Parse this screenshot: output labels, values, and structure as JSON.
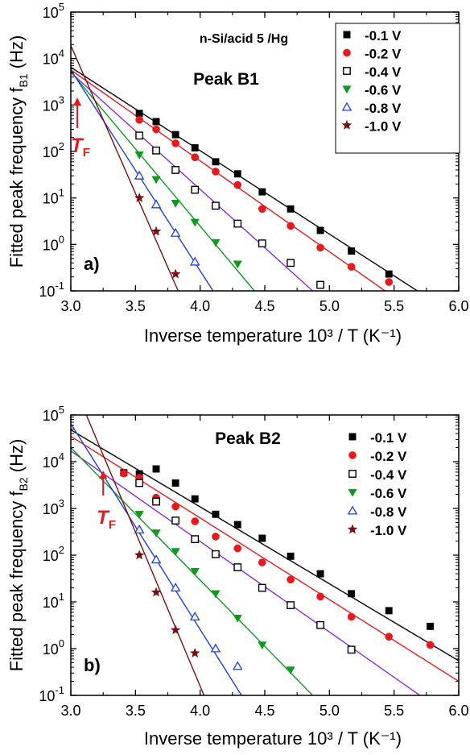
{
  "chart_data": [
    {
      "type": "scatter",
      "panel_label": "a)",
      "annotation": "n-Si/acid 5 /Hg",
      "peak_label": "Peak B1",
      "marker_label": "T",
      "marker_subscript": "F",
      "marker_x": 3.05,
      "xlabel": "Inverse temperature 10³ / T  (K⁻¹)",
      "ylabel": "Fitted peak frequency f",
      "ylabel_subscript": "B1",
      "ylabel_unit": "(Hz)",
      "xlim": [
        3.0,
        6.0
      ],
      "ylim": [
        0.1,
        100000
      ],
      "yscale": "log",
      "xticks": [
        "3.0",
        "3.5",
        "4.0",
        "4.5",
        "5.0",
        "5.5",
        "6.0"
      ],
      "yticks": [
        {
          "base": "10",
          "exp": "-1"
        },
        {
          "base": "10",
          "exp": "0"
        },
        {
          "base": "10",
          "exp": "1"
        },
        {
          "base": "10",
          "exp": "2"
        },
        {
          "base": "10",
          "exp": "3"
        },
        {
          "base": "10",
          "exp": "4"
        },
        {
          "base": "10",
          "exp": "5"
        }
      ],
      "legend_position": "top-right",
      "series": [
        {
          "name": "-0.1 V",
          "color": "#000000",
          "marker": "filled-square",
          "x": [
            3.53,
            3.66,
            3.81,
            3.96,
            4.12,
            4.29,
            4.48,
            4.7,
            4.93,
            5.17,
            5.46
          ],
          "y": [
            660,
            440,
            230,
            120,
            60,
            33,
            13.5,
            5.8,
            2.0,
            0.72,
            0.23
          ],
          "fit": [
            [
              3.0,
              6500
            ],
            [
              5.68,
              0.1
            ]
          ]
        },
        {
          "name": "-0.2 V",
          "color": "#e8191d",
          "marker": "filled-circle",
          "x": [
            3.53,
            3.66,
            3.81,
            3.96,
            4.12,
            4.29,
            4.48,
            4.7,
            4.93,
            5.17,
            5.46
          ],
          "y": [
            480,
            300,
            150,
            75,
            37,
            19,
            5.8,
            2.5,
            0.85,
            0.33,
            0.155
          ],
          "fit": [
            [
              3.0,
              5700
            ],
            [
              5.43,
              0.1
            ]
          ]
        },
        {
          "name": "-0.4 V",
          "color": "#000000",
          "marker": "open-square",
          "x": [
            3.53,
            3.66,
            3.81,
            3.96,
            4.12,
            4.29,
            4.48,
            4.7,
            4.93
          ],
          "y": [
            220,
            105,
            40,
            15,
            6.8,
            2.8,
            1.05,
            0.4,
            0.135
          ],
          "fit": [
            [
              3.0,
              5000
            ],
            [
              4.87,
              0.1
            ]
          ]
        },
        {
          "name": "-0.6 V",
          "color": "#0d9a1f",
          "marker": "filled-triangle-down",
          "x": [
            3.53,
            3.66,
            3.81,
            3.96,
            4.12,
            4.29
          ],
          "y": [
            85,
            25,
            7.7,
            3.0,
            1.1,
            0.38
          ],
          "fit": [
            [
              3.0,
              5200
            ],
            [
              4.42,
              0.1
            ]
          ]
        },
        {
          "name": "-0.8 V",
          "color": "#1d3fe0",
          "marker": "open-triangle-up",
          "x": [
            3.53,
            3.66,
            3.81,
            3.96
          ],
          "y": [
            30,
            7.2,
            1.75,
            0.42
          ],
          "fit": [
            [
              3.0,
              5700
            ],
            [
              4.1,
              0.1
            ]
          ]
        },
        {
          "name": "-1.0 V",
          "color": "#7a1010",
          "marker": "filled-star",
          "x": [
            3.53,
            3.66,
            3.81
          ],
          "y": [
            10,
            1.9,
            0.23
          ],
          "fit": [
            [
              3.0,
              19000
            ],
            [
              3.83,
              0.1
            ]
          ]
        }
      ]
    },
    {
      "type": "scatter",
      "panel_label": "b)",
      "annotation": "",
      "peak_label": "Peak B2",
      "marker_label": "T",
      "marker_subscript": "F",
      "marker_x": 3.25,
      "xlabel": "Inverse temperature 10³ / T  (K⁻¹)",
      "ylabel": "Fitted peak frequency f",
      "ylabel_subscript": "B2",
      "ylabel_unit": "(Hz)",
      "xlim": [
        3.0,
        6.0
      ],
      "ylim": [
        0.1,
        100000
      ],
      "yscale": "log",
      "xticks": [
        "3.0",
        "3.5",
        "4.0",
        "4.5",
        "5.0",
        "5.5",
        "6.0"
      ],
      "yticks": [
        {
          "base": "10",
          "exp": "-1"
        },
        {
          "base": "10",
          "exp": "0"
        },
        {
          "base": "10",
          "exp": "1"
        },
        {
          "base": "10",
          "exp": "2"
        },
        {
          "base": "10",
          "exp": "3"
        },
        {
          "base": "10",
          "exp": "4"
        },
        {
          "base": "10",
          "exp": "5"
        }
      ],
      "legend_position": "top-right",
      "series": [
        {
          "name": "-0.1 V",
          "color": "#000000",
          "marker": "filled-square",
          "x": [
            3.41,
            3.53,
            3.66,
            3.81,
            3.96,
            4.12,
            4.29,
            4.48,
            4.7,
            4.93,
            5.17,
            5.46,
            5.78
          ],
          "y": [
            5800,
            5500,
            7000,
            3500,
            1600,
            750,
            450,
            230,
            95,
            40,
            15,
            6.5,
            3.0
          ],
          "fit": [
            [
              3.0,
              48000
            ],
            [
              6.0,
              0.55
            ]
          ]
        },
        {
          "name": "-0.2 V",
          "color": "#e8191d",
          "marker": "filled-circle",
          "x": [
            3.41,
            3.53,
            3.66,
            3.81,
            3.96,
            4.12,
            4.29,
            4.48,
            4.7,
            4.93,
            5.17,
            5.46,
            5.78
          ],
          "y": [
            5600,
            4500,
            1700,
            1100,
            530,
            250,
            140,
            70,
            30,
            13,
            4.8,
            1.8,
            1.2
          ],
          "fit": [
            [
              3.0,
              35000
            ],
            [
              6.0,
              0.2
            ]
          ]
        },
        {
          "name": "-0.4 V",
          "color": "#000000",
          "marker": "open-square",
          "x": [
            3.53,
            3.66,
            3.81,
            3.96,
            4.12,
            4.29,
            4.48,
            4.7,
            4.93,
            5.17
          ],
          "y": [
            3500,
            1400,
            550,
            220,
            105,
            55,
            20,
            8.5,
            3.2,
            0.95
          ],
          "fit": [
            [
              3.0,
              17000
            ],
            [
              5.7,
              0.1
            ]
          ]
        },
        {
          "name": "-0.6 V",
          "color": "#0d9a1f",
          "marker": "filled-triangle-down",
          "x": [
            3.53,
            3.66,
            3.81,
            3.96,
            4.12,
            4.29,
            4.48,
            4.7
          ],
          "y": [
            750,
            300,
            120,
            45,
            15,
            4.5,
            1.2,
            0.35
          ],
          "fit": [
            [
              3.0,
              20000
            ],
            [
              4.87,
              0.1
            ]
          ]
        },
        {
          "name": "-0.8 V",
          "color": "#1d3fe0",
          "marker": "open-triangle-up",
          "x": [
            3.53,
            3.66,
            3.81,
            3.96,
            4.12,
            4.29
          ],
          "y": [
            350,
            80,
            20,
            4.8,
            1.0,
            0.42
          ],
          "fit": [
            [
              3.0,
              65000
            ],
            [
              4.32,
              0.1
            ]
          ]
        },
        {
          "name": "-1.0 V",
          "color": "#7a1010",
          "marker": "filled-star",
          "x": [
            3.53,
            3.66,
            3.81,
            3.96
          ],
          "y": [
            100,
            16,
            2.5,
            0.8
          ],
          "fit": [
            [
              3.12,
              100000
            ],
            [
              4.03,
              0.1
            ]
          ]
        }
      ]
    }
  ]
}
